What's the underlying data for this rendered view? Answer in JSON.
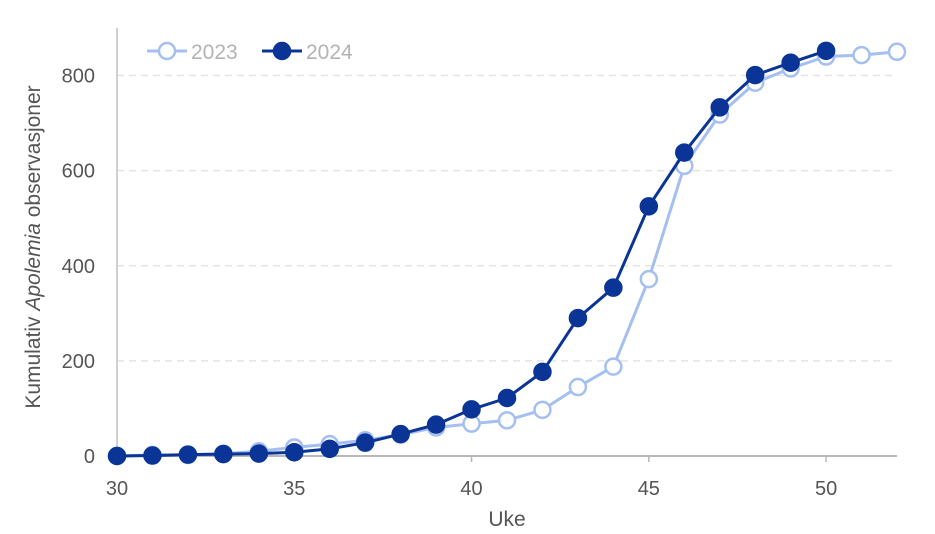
{
  "chart_data": {
    "type": "line",
    "xlabel": "Uke",
    "ylabel_parts": [
      {
        "text": "Kumulativ ",
        "italic": false
      },
      {
        "text": "Apolemia",
        "italic": true
      },
      {
        "text": " observasjoner",
        "italic": false
      }
    ],
    "xlim": [
      30,
      52
    ],
    "ylim": [
      0,
      900
    ],
    "xticks": [
      30,
      35,
      40,
      45,
      50
    ],
    "yticks": [
      0,
      200,
      400,
      600,
      800
    ],
    "grid": "horizontal dashed",
    "legend_position": "top-left",
    "series": [
      {
        "name": "2023",
        "color": "#a4bff0",
        "marker": "open-circle",
        "x": [
          30,
          31,
          32,
          33,
          34,
          35,
          36,
          37,
          38,
          39,
          40,
          41,
          42,
          43,
          44,
          45,
          46,
          47,
          48,
          49,
          50,
          51,
          52
        ],
        "values": [
          0,
          2,
          2,
          5,
          10,
          18,
          25,
          33,
          45,
          60,
          68,
          75,
          97,
          145,
          188,
          372,
          610,
          718,
          785,
          815,
          840,
          843,
          850
        ]
      },
      {
        "name": "2024",
        "color": "#0a3597",
        "marker": "filled-circle",
        "x": [
          30,
          31,
          32,
          33,
          34,
          35,
          36,
          37,
          38,
          39,
          40,
          41,
          42,
          43,
          44,
          45,
          46,
          47,
          48,
          49,
          50
        ],
        "values": [
          0,
          1,
          3,
          4,
          5,
          8,
          15,
          28,
          46,
          66,
          98,
          122,
          177,
          290,
          354,
          525,
          638,
          733,
          801,
          827,
          852
        ]
      }
    ]
  }
}
